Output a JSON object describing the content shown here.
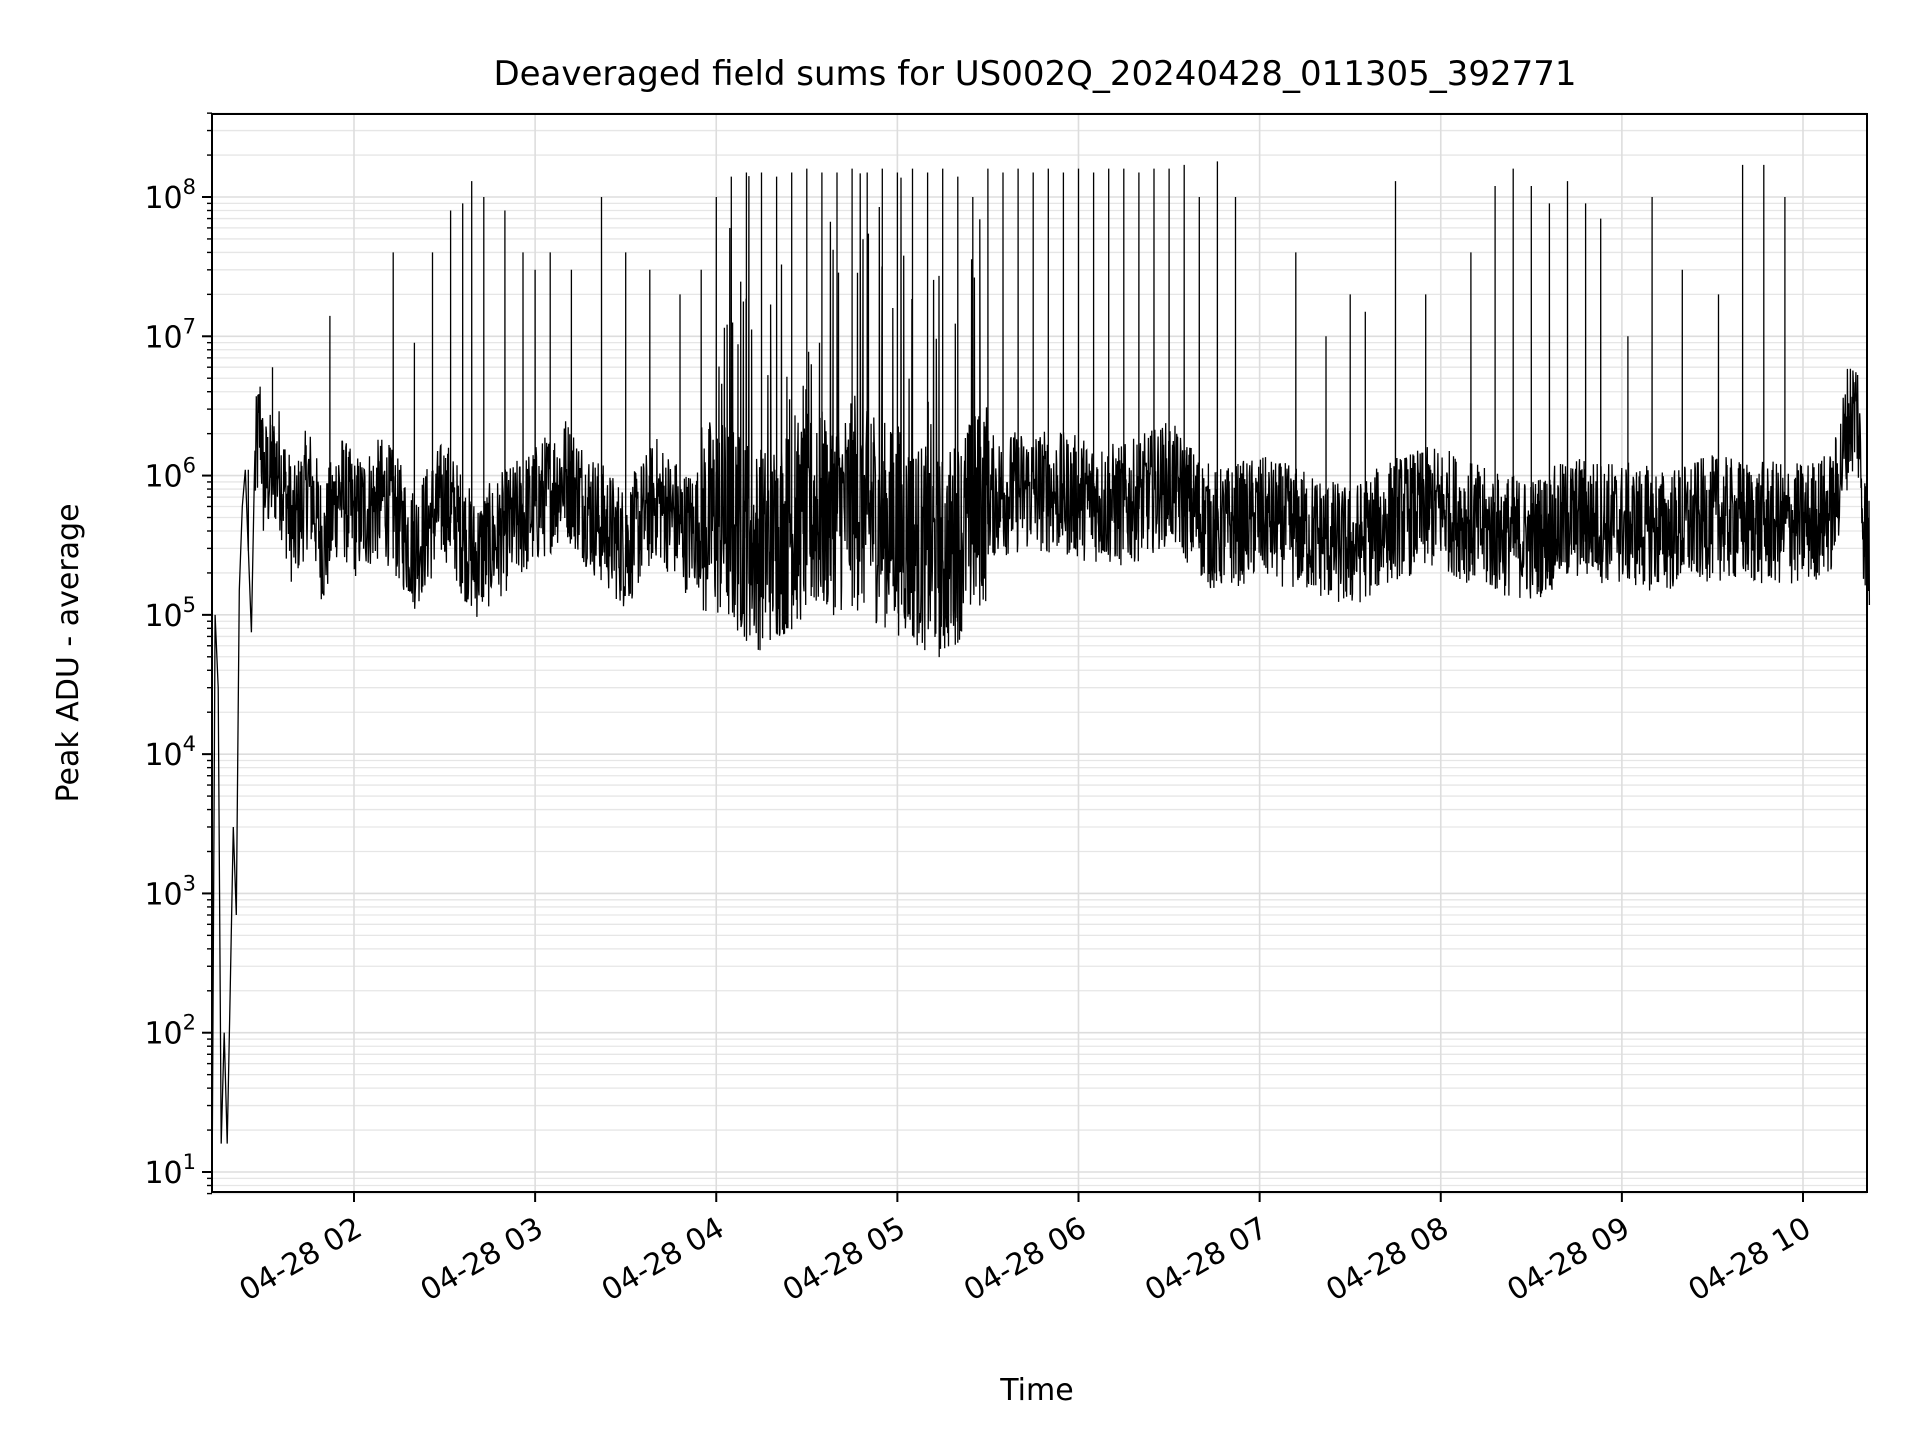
{
  "chart_data": {
    "type": "line",
    "title": "Deaveraged field sums for US002Q_20240428_011305_392771",
    "xlabel": "Time",
    "ylabel": "Peak ADU - average",
    "y_scale": "log",
    "ylim": [
      7,
      400000000
    ],
    "xlim": [
      "2024-04-28 01:13",
      "2024-04-28 10:22"
    ],
    "grid": "on (major and minor)",
    "line_color": "#000000",
    "x_ticks": [
      "04-28 02",
      "04-28 03",
      "04-28 04",
      "04-28 05",
      "04-28 06",
      "04-28 07",
      "04-28 08",
      "04-28 09",
      "04-28 10"
    ],
    "x_tick_times": [
      "2024-04-28 02:00",
      "2024-04-28 03:00",
      "2024-04-28 04:00",
      "2024-04-28 05:00",
      "2024-04-28 06:00",
      "2024-04-28 07:00",
      "2024-04-28 08:00",
      "2024-04-28 09:00",
      "2024-04-28 10:00"
    ],
    "y_ticks": [
      {
        "base": "10",
        "exp": "1",
        "value": 10
      },
      {
        "base": "10",
        "exp": "2",
        "value": 100
      },
      {
        "base": "10",
        "exp": "3",
        "value": 1000
      },
      {
        "base": "10",
        "exp": "4",
        "value": 10000
      },
      {
        "base": "10",
        "exp": "5",
        "value": 100000
      },
      {
        "base": "10",
        "exp": "6",
        "value": 1000000
      },
      {
        "base": "10",
        "exp": "7",
        "value": 10000000
      },
      {
        "base": "10",
        "exp": "8",
        "value": 100000000
      }
    ],
    "series": [
      {
        "points": [
          [
            "2024-04-28 01:13",
            8
          ],
          [
            "2024-04-28 01:14",
            100000
          ],
          [
            "2024-04-28 01:15",
            30000
          ],
          [
            "2024-04-28 01:16",
            16
          ],
          [
            "2024-04-28 01:17",
            100
          ],
          [
            "2024-04-28 01:18",
            16
          ],
          [
            "2024-04-28 01:19",
            200
          ],
          [
            "2024-04-28 01:20",
            3000
          ],
          [
            "2024-04-28 01:21",
            700
          ],
          [
            "2024-04-28 01:22",
            150000
          ],
          [
            "2024-04-28 01:23",
            600000
          ],
          [
            "2024-04-28 01:24",
            1100000
          ],
          [
            "2024-04-28 01:26",
            75000
          ],
          [
            "2024-04-28 01:27",
            1000000
          ],
          [
            "2024-04-28 01:29",
            2500000
          ],
          [
            "2024-04-28 01:30",
            900000
          ],
          [
            "2024-04-28 01:35",
            1200000
          ],
          [
            "2024-04-28 01:40",
            400000
          ],
          [
            "2024-04-28 01:45",
            900000
          ],
          [
            "2024-04-28 01:50",
            300000
          ],
          [
            "2024-04-28 01:55",
            800000
          ],
          [
            "2024-04-28 02:00",
            500000
          ],
          [
            "2024-04-28 02:10",
            700000
          ],
          [
            "2024-04-28 02:20",
            300000
          ],
          [
            "2024-04-28 02:30",
            700000
          ],
          [
            "2024-04-28 02:40",
            250000
          ],
          [
            "2024-04-28 02:50",
            400000
          ],
          [
            "2024-04-28 03:00",
            600000
          ],
          [
            "2024-04-28 03:10",
            1000000
          ],
          [
            "2024-04-28 03:20",
            500000
          ],
          [
            "2024-04-28 03:30",
            300000
          ],
          [
            "2024-04-28 03:40",
            700000
          ],
          [
            "2024-04-28 03:50",
            400000
          ],
          [
            "2024-04-28 04:00",
            500000
          ],
          [
            "2024-04-28 04:15",
            300000
          ],
          [
            "2024-04-28 04:30",
            500000
          ],
          [
            "2024-04-28 04:45",
            600000
          ],
          [
            "2024-04-28 05:00",
            400000
          ],
          [
            "2024-04-28 05:15",
            250000
          ],
          [
            "2024-04-28 05:30",
            700000
          ],
          [
            "2024-04-28 05:45",
            800000
          ],
          [
            "2024-04-28 06:00",
            700000
          ],
          [
            "2024-04-28 06:15",
            600000
          ],
          [
            "2024-04-28 06:30",
            900000
          ],
          [
            "2024-04-28 06:45",
            400000
          ],
          [
            "2024-04-28 07:00",
            500000
          ],
          [
            "2024-04-28 07:15",
            400000
          ],
          [
            "2024-04-28 07:30",
            300000
          ],
          [
            "2024-04-28 07:45",
            500000
          ],
          [
            "2024-04-28 08:00",
            600000
          ],
          [
            "2024-04-28 08:15",
            400000
          ],
          [
            "2024-04-28 08:30",
            350000
          ],
          [
            "2024-04-28 08:45",
            500000
          ],
          [
            "2024-04-28 09:00",
            450000
          ],
          [
            "2024-04-28 09:15",
            400000
          ],
          [
            "2024-04-28 09:30",
            500000
          ],
          [
            "2024-04-28 09:45",
            450000
          ],
          [
            "2024-04-28 10:00",
            450000
          ],
          [
            "2024-04-28 10:10",
            550000
          ],
          [
            "2024-04-28 10:15",
            2500000
          ],
          [
            "2024-04-28 10:18",
            3000000
          ],
          [
            "2024-04-28 10:20",
            500000
          ],
          [
            "2024-04-28 10:22",
            250000
          ]
        ]
      }
    ],
    "spikes": [
      [
        "2024-04-28 01:25",
        1100000
      ],
      [
        "2024-04-28 01:33",
        6000000
      ],
      [
        "2024-04-28 01:52",
        14000000
      ],
      [
        "2024-04-28 02:13",
        40000000
      ],
      [
        "2024-04-28 02:20",
        9000000
      ],
      [
        "2024-04-28 02:26",
        40000000
      ],
      [
        "2024-04-28 02:32",
        80000000
      ],
      [
        "2024-04-28 02:36",
        90000000
      ],
      [
        "2024-04-28 02:39",
        130000000
      ],
      [
        "2024-04-28 02:43",
        100000000
      ],
      [
        "2024-04-28 02:50",
        80000000
      ],
      [
        "2024-04-28 02:56",
        40000000
      ],
      [
        "2024-04-28 03:00",
        30000000
      ],
      [
        "2024-04-28 03:05",
        40000000
      ],
      [
        "2024-04-28 03:12",
        30000000
      ],
      [
        "2024-04-28 03:22",
        100000000
      ],
      [
        "2024-04-28 03:30",
        40000000
      ],
      [
        "2024-04-28 03:38",
        30000000
      ],
      [
        "2024-04-28 03:48",
        20000000
      ],
      [
        "2024-04-28 03:55",
        30000000
      ],
      [
        "2024-04-28 04:00",
        100000000
      ],
      [
        "2024-04-28 04:05",
        140000000
      ],
      [
        "2024-04-28 04:10",
        150000000
      ],
      [
        "2024-04-28 04:15",
        150000000
      ],
      [
        "2024-04-28 04:20",
        140000000
      ],
      [
        "2024-04-28 04:25",
        150000000
      ],
      [
        "2024-04-28 04:30",
        160000000
      ],
      [
        "2024-04-28 04:35",
        150000000
      ],
      [
        "2024-04-28 04:40",
        150000000
      ],
      [
        "2024-04-28 04:45",
        160000000
      ],
      [
        "2024-04-28 04:50",
        150000000
      ],
      [
        "2024-04-28 04:55",
        160000000
      ],
      [
        "2024-04-28 05:00",
        150000000
      ],
      [
        "2024-04-28 05:05",
        160000000
      ],
      [
        "2024-04-28 05:10",
        150000000
      ],
      [
        "2024-04-28 05:15",
        160000000
      ],
      [
        "2024-04-28 05:20",
        140000000
      ],
      [
        "2024-04-28 05:25",
        100000000
      ],
      [
        "2024-04-28 05:30",
        160000000
      ],
      [
        "2024-04-28 05:35",
        150000000
      ],
      [
        "2024-04-28 05:40",
        160000000
      ],
      [
        "2024-04-28 05:45",
        150000000
      ],
      [
        "2024-04-28 05:50",
        160000000
      ],
      [
        "2024-04-28 05:55",
        150000000
      ],
      [
        "2024-04-28 06:00",
        160000000
      ],
      [
        "2024-04-28 06:05",
        150000000
      ],
      [
        "2024-04-28 06:10",
        160000000
      ],
      [
        "2024-04-28 06:15",
        160000000
      ],
      [
        "2024-04-28 06:20",
        150000000
      ],
      [
        "2024-04-28 06:25",
        160000000
      ],
      [
        "2024-04-28 06:30",
        160000000
      ],
      [
        "2024-04-28 06:35",
        170000000
      ],
      [
        "2024-04-28 06:40",
        100000000
      ],
      [
        "2024-04-28 06:46",
        180000000
      ],
      [
        "2024-04-28 06:52",
        100000000
      ],
      [
        "2024-04-28 07:12",
        40000000
      ],
      [
        "2024-04-28 07:22",
        10000000
      ],
      [
        "2024-04-28 07:30",
        20000000
      ],
      [
        "2024-04-28 07:35",
        15000000
      ],
      [
        "2024-04-28 07:45",
        130000000
      ],
      [
        "2024-04-28 07:55",
        20000000
      ],
      [
        "2024-04-28 08:10",
        40000000
      ],
      [
        "2024-04-28 08:18",
        120000000
      ],
      [
        "2024-04-28 08:24",
        160000000
      ],
      [
        "2024-04-28 08:30",
        120000000
      ],
      [
        "2024-04-28 08:36",
        90000000
      ],
      [
        "2024-04-28 08:42",
        130000000
      ],
      [
        "2024-04-28 08:48",
        90000000
      ],
      [
        "2024-04-28 08:53",
        70000000
      ],
      [
        "2024-04-28 09:02",
        10000000
      ],
      [
        "2024-04-28 09:10",
        100000000
      ],
      [
        "2024-04-28 09:20",
        30000000
      ],
      [
        "2024-04-28 09:32",
        20000000
      ],
      [
        "2024-04-28 09:40",
        170000000
      ],
      [
        "2024-04-28 09:47",
        170000000
      ],
      [
        "2024-04-28 09:54",
        100000000
      ]
    ]
  }
}
